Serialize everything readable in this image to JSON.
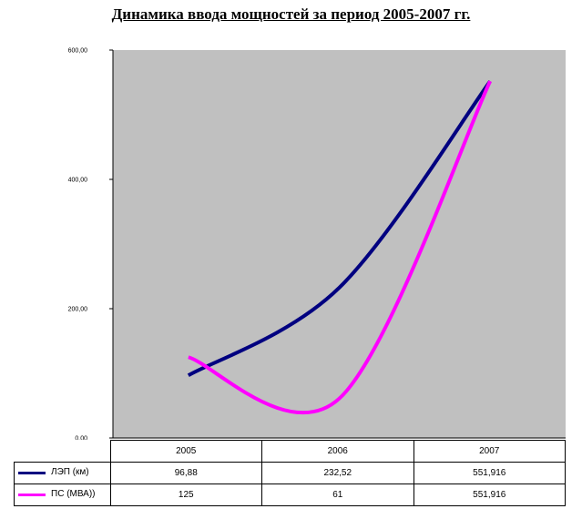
{
  "title": "Динамика ввода мощностей за период 2005-2007 гг.",
  "colors": {
    "plot_bg": "#c0c0c0",
    "lep": "#000080",
    "ps": "#ff00ff"
  },
  "chart_data": {
    "type": "line",
    "title": "Динамика ввода мощностей за период 2005-2007 гг.",
    "categories": [
      "2005",
      "2006",
      "2007"
    ],
    "ylim": [
      0,
      600
    ],
    "y_ticks": [
      "0,00",
      "200,00",
      "400,00",
      "600,00"
    ],
    "grid": false,
    "legend_placement": "data-table",
    "series": [
      {
        "name": "ЛЭП (км)",
        "values": [
          96.88,
          232.52,
          551.916
        ],
        "labels": [
          "96,88",
          "232,52",
          "551,916"
        ],
        "color": "#000080"
      },
      {
        "name": "ПС (МВА))",
        "values": [
          125,
          61,
          551.916
        ],
        "labels": [
          "125",
          "61",
          "551,916"
        ],
        "color": "#ff00ff"
      }
    ]
  }
}
